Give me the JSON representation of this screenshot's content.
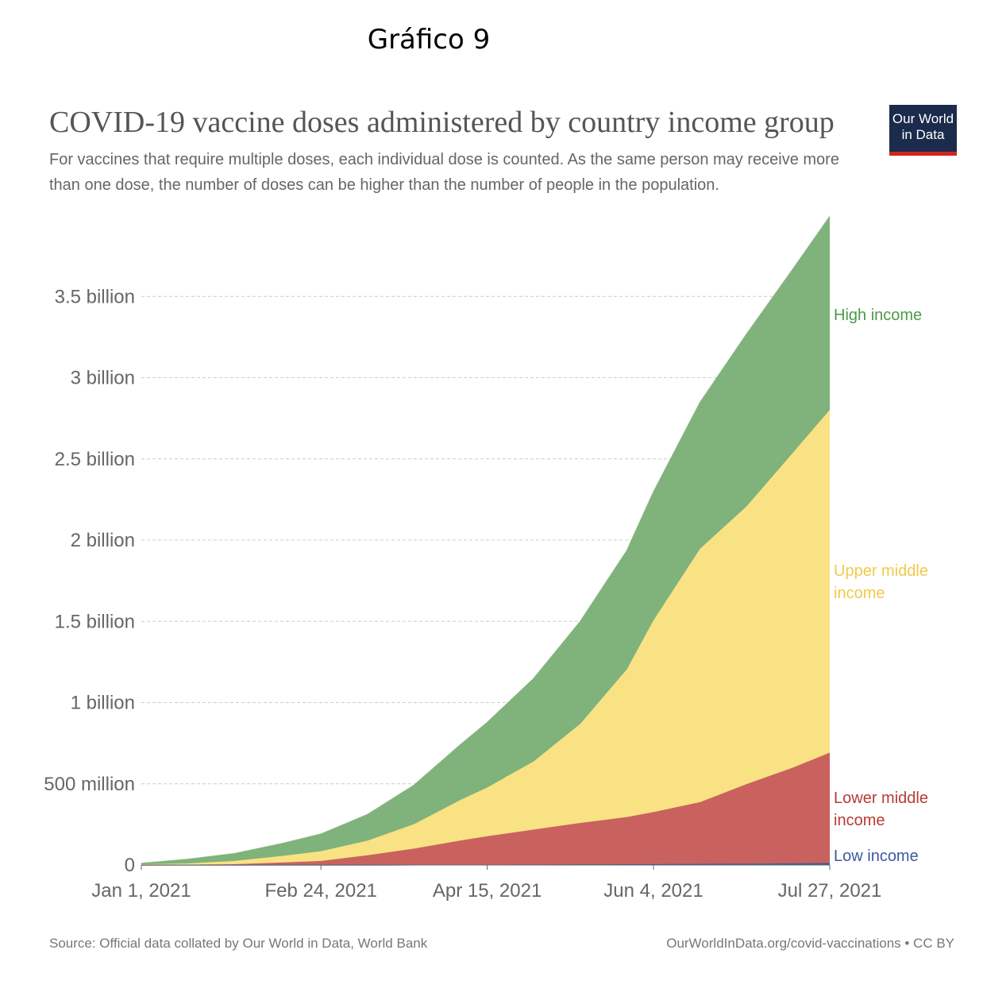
{
  "page_heading": "Gráfico 9",
  "logo": {
    "line1": "Our World",
    "line2": "in Data"
  },
  "footer": {
    "source": "Source: Official data collated by Our World in Data, World Bank",
    "url": "OurWorldInData.org/covid-vaccinations • CC BY"
  },
  "chart_data": {
    "type": "area",
    "stacked": true,
    "title": "COVID-19 vaccine doses administered by country income group",
    "subtitle": "For vaccines that require multiple doses, each individual dose is counted. As the same person may receive more than one dose, the number of doses can be higher than the number of people in the population.",
    "x_ticks": [
      "Jan 1, 2021",
      "Feb 24, 2021",
      "Apr 15, 2021",
      "Jun 4, 2021",
      "Jul 27, 2021"
    ],
    "x_tick_days": [
      0,
      54,
      104,
      154,
      207
    ],
    "y_ticks": [
      {
        "value": 0,
        "label": "0"
      },
      {
        "value": 500000000,
        "label": "500 million"
      },
      {
        "value": 1000000000,
        "label": "1 billion"
      },
      {
        "value": 1500000000,
        "label": "1.5 billion"
      },
      {
        "value": 2000000000,
        "label": "2 billion"
      },
      {
        "value": 2500000000,
        "label": "2.5 billion"
      },
      {
        "value": 3000000000,
        "label": "3 billion"
      },
      {
        "value": 3500000000,
        "label": "3.5 billion"
      }
    ],
    "ylim": [
      0,
      4000000000
    ],
    "grid": true,
    "x": [
      "2021-01-01",
      "2021-01-15",
      "2021-01-29",
      "2021-02-12",
      "2021-02-24",
      "2021-03-10",
      "2021-03-24",
      "2021-04-07",
      "2021-04-15",
      "2021-04-29",
      "2021-05-13",
      "2021-05-27",
      "2021-06-04",
      "2021-06-18",
      "2021-07-02",
      "2021-07-16",
      "2021-07-27"
    ],
    "series": [
      {
        "name": "Low income",
        "color": "#3c5aa0",
        "values": [
          0,
          0,
          0,
          0,
          0,
          0,
          1000000,
          1000000,
          2000000,
          3000000,
          4000000,
          5000000,
          6000000,
          7000000,
          8000000,
          10000000,
          12000000
        ]
      },
      {
        "name": "Lower middle income",
        "color": "#c9625f",
        "values": [
          0,
          2000000,
          5000000,
          15000000,
          25000000,
          60000000,
          100000000,
          150000000,
          175000000,
          215000000,
          255000000,
          290000000,
          320000000,
          380000000,
          490000000,
          590000000,
          680000000
        ]
      },
      {
        "name": "Upper middle income",
        "color": "#f9e283",
        "values": [
          4000000,
          8000000,
          20000000,
          40000000,
          60000000,
          90000000,
          150000000,
          250000000,
          300000000,
          420000000,
          610000000,
          910000000,
          1180000000,
          1560000000,
          1710000000,
          1940000000,
          2110000000
        ]
      },
      {
        "name": "High income",
        "color": "#80b27b",
        "values": [
          6000000,
          25000000,
          45000000,
          75000000,
          105000000,
          160000000,
          240000000,
          340000000,
          400000000,
          510000000,
          630000000,
          730000000,
          790000000,
          900000000,
          1060000000,
          1130000000,
          1190000000
        ]
      }
    ]
  }
}
